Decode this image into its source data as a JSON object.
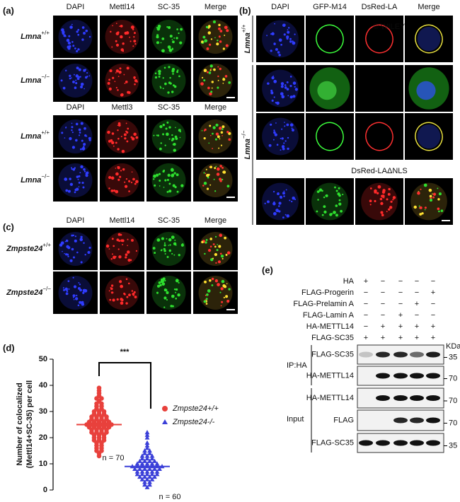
{
  "panel_a": {
    "label": "(a)",
    "blocks": [
      {
        "columns": [
          "DAPI",
          "Mettl14",
          "SC-35",
          "Merge"
        ],
        "rows": [
          {
            "gene": "Lmna",
            "genotype": "+/+"
          },
          {
            "gene": "Lmna",
            "genotype": "−/−"
          }
        ]
      },
      {
        "columns": [
          "DAPI",
          "Mettl3",
          "SC-35",
          "Merge"
        ],
        "rows": [
          {
            "gene": "Lmna",
            "genotype": "+/+"
          },
          {
            "gene": "Lmna",
            "genotype": "−/−"
          }
        ]
      }
    ]
  },
  "panel_b": {
    "label": "(b)",
    "columns": [
      "DAPI",
      "GFP-M14",
      "DsRed-LA",
      "Merge"
    ],
    "watermark": "© WILEY",
    "row_groups": [
      {
        "gene": "Lmna",
        "genotype": "+/+"
      },
      {
        "gene": "Lmna",
        "genotype": "−/−"
      }
    ],
    "subheader": "DsRed-LAΔNLS"
  },
  "panel_c": {
    "label": "(c)",
    "columns": [
      "DAPI",
      "Mettl14",
      "SC-35",
      "Merge"
    ],
    "rows": [
      {
        "gene": "Zmpste24",
        "genotype": "+/+"
      },
      {
        "gene": "Zmpste24",
        "genotype": "−/−"
      }
    ]
  },
  "chart_data": {
    "type": "strip",
    "panel_label": "(d)",
    "ylabel": [
      "Number of colocalized",
      "(Mettl14+SC-35) per cell"
    ],
    "significance": "***",
    "ylim": [
      0,
      50
    ],
    "yticks": [
      0,
      10,
      20,
      30,
      40,
      50
    ],
    "series": [
      {
        "name": "Zmpste24+/+",
        "color": "#e8413c",
        "marker": "circle",
        "mean": 25,
        "n_label": "n = 70",
        "values": [
          39,
          38,
          37,
          36,
          35,
          35,
          34,
          33,
          33,
          32,
          32,
          31,
          31,
          30,
          30,
          30,
          29,
          29,
          29,
          28,
          28,
          28,
          28,
          27,
          27,
          27,
          27,
          26,
          26,
          26,
          26,
          26,
          25,
          25,
          25,
          25,
          25,
          25,
          24,
          24,
          24,
          24,
          24,
          23,
          23,
          23,
          23,
          22,
          22,
          22,
          22,
          21,
          21,
          21,
          20,
          20,
          20,
          19,
          19,
          19,
          18,
          18,
          17,
          17,
          16,
          16,
          15,
          15,
          14,
          13
        ]
      },
      {
        "name": "Zmpste24-/-",
        "color": "#3a3fd8",
        "marker": "triangle",
        "mean": 9,
        "n_label": "n = 60",
        "values": [
          22,
          21,
          20,
          18,
          17,
          16,
          15,
          15,
          14,
          14,
          13,
          13,
          13,
          12,
          12,
          12,
          11,
          11,
          11,
          11,
          10,
          10,
          10,
          10,
          10,
          9,
          9,
          9,
          9,
          9,
          9,
          9,
          8,
          8,
          8,
          8,
          8,
          8,
          7,
          7,
          7,
          7,
          7,
          6,
          6,
          6,
          6,
          6,
          5,
          5,
          5,
          5,
          4,
          4,
          4,
          3,
          3,
          2,
          2,
          1
        ]
      }
    ]
  },
  "panel_e": {
    "label": "(e)",
    "conditions": [
      {
        "label": "HA",
        "signs": [
          "+",
          "−",
          "−",
          "−",
          "−"
        ]
      },
      {
        "label": "FLAG-Progerin",
        "signs": [
          "−",
          "−",
          "−",
          "−",
          "+"
        ]
      },
      {
        "label": "FLAG-Prelamin A",
        "signs": [
          "−",
          "−",
          "−",
          "+",
          "−"
        ]
      },
      {
        "label": "FLAG-Lamin A",
        "signs": [
          "−",
          "−",
          "+",
          "−",
          "−"
        ]
      },
      {
        "label": "HA-METTL14",
        "signs": [
          "−",
          "+",
          "+",
          "+",
          "+"
        ]
      },
      {
        "label": "FLAG-SC35",
        "signs": [
          "+",
          "+",
          "+",
          "+",
          "+"
        ]
      }
    ],
    "mw_unit": "KDa",
    "groups": [
      {
        "label": "IP:HA"
      },
      {
        "label": "Input"
      }
    ],
    "blots": [
      {
        "label": "FLAG-SC35",
        "marker": "35"
      },
      {
        "label": "HA-METTL14",
        "marker": "70"
      },
      {
        "label": "HA-METTL14",
        "marker": "70"
      },
      {
        "label": "FLAG",
        "marker": "70"
      },
      {
        "label": "FLAG-SC35",
        "marker": "35"
      }
    ]
  }
}
